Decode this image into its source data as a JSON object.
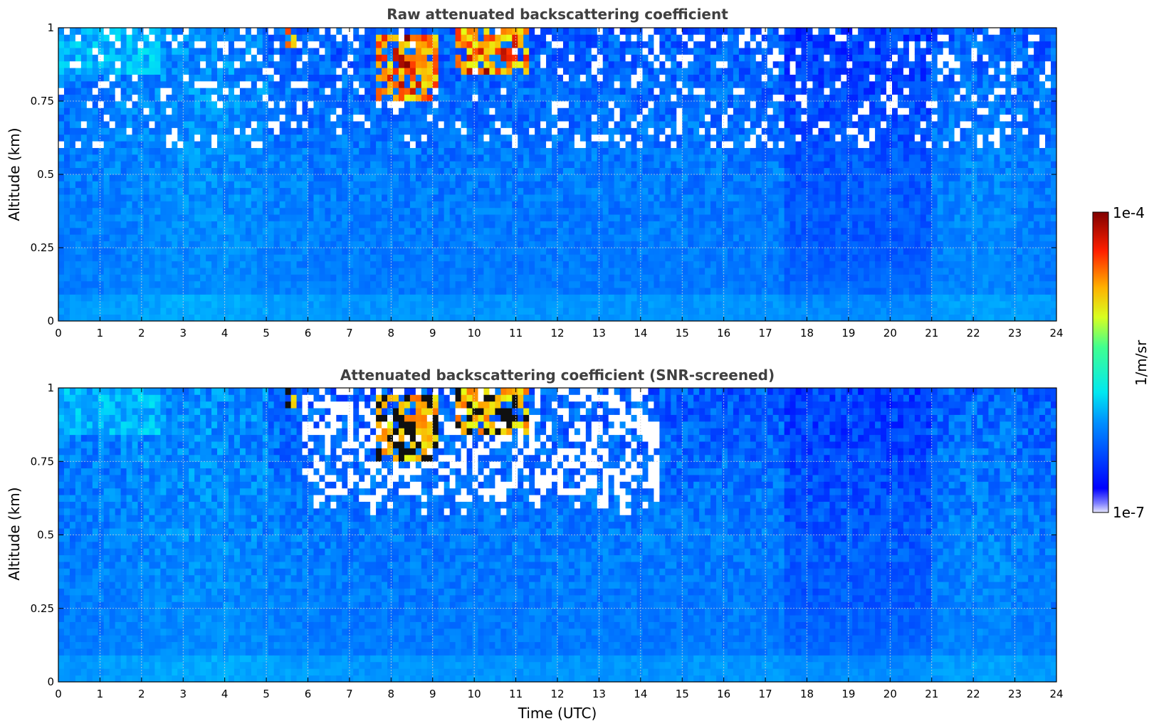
{
  "chart_data": [
    {
      "type": "heatmap",
      "title": "Raw attenuated backscattering coefficient",
      "xlabel": "",
      "ylabel": "Altitude (km)",
      "xlim": [
        0,
        24
      ],
      "ylim": [
        0,
        1
      ],
      "x_ticks": [
        "0",
        "1",
        "2",
        "3",
        "4",
        "5",
        "6",
        "7",
        "8",
        "9",
        "10",
        "11",
        "12",
        "13",
        "14",
        "15",
        "16",
        "17",
        "18",
        "19",
        "20",
        "21",
        "22",
        "23",
        "24"
      ],
      "y_ticks": [
        "0",
        "0.25",
        "0.5",
        "0.75",
        "1"
      ],
      "grid": true,
      "screened": false,
      "features": [
        {
          "kind": "cloud",
          "t_start": 5.4,
          "t_end": 5.7,
          "alt_min": 0.93,
          "alt_max": 1.0
        },
        {
          "kind": "cloud",
          "t_start": 7.6,
          "t_end": 9.2,
          "alt_min": 0.74,
          "alt_max": 0.97
        },
        {
          "kind": "cloud",
          "t_start": 9.5,
          "t_end": 11.3,
          "alt_min": 0.83,
          "alt_max": 1.0
        }
      ]
    },
    {
      "type": "heatmap",
      "title": "Attenuated backscattering coefficient (SNR-screened)",
      "xlabel": "Time (UTC)",
      "ylabel": "Altitude (km)",
      "xlim": [
        0,
        24
      ],
      "ylim": [
        0,
        1
      ],
      "x_ticks": [
        "0",
        "1",
        "2",
        "3",
        "4",
        "5",
        "6",
        "7",
        "8",
        "9",
        "10",
        "11",
        "12",
        "13",
        "14",
        "15",
        "16",
        "17",
        "18",
        "19",
        "20",
        "21",
        "22",
        "23",
        "24"
      ],
      "y_ticks": [
        "0",
        "0.25",
        "0.5",
        "0.75",
        "1"
      ],
      "grid": true,
      "screened": true,
      "features": [
        {
          "kind": "cloud",
          "t_start": 5.4,
          "t_end": 5.7,
          "alt_min": 0.93,
          "alt_max": 1.0
        },
        {
          "kind": "cloud",
          "t_start": 7.6,
          "t_end": 9.2,
          "alt_min": 0.74,
          "alt_max": 0.97
        },
        {
          "kind": "cloud",
          "t_start": 9.5,
          "t_end": 11.3,
          "alt_min": 0.83,
          "alt_max": 1.0
        }
      ]
    }
  ],
  "colorbar": {
    "label": "1/m/sr",
    "min_label": "1e-7",
    "max_label": "1e-4",
    "colormap": "jet"
  }
}
